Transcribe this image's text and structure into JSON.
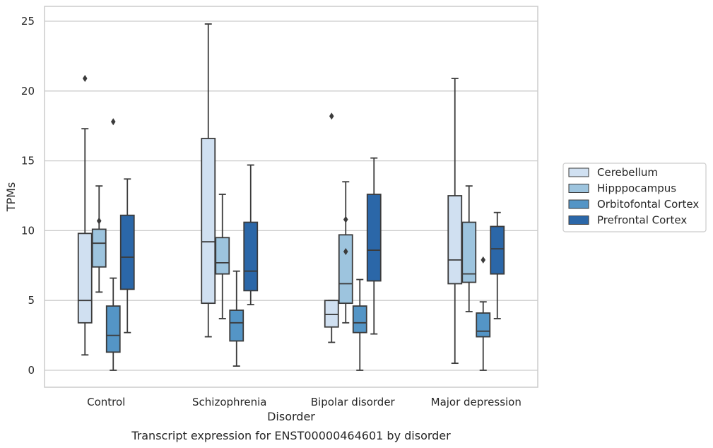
{
  "caption": "Transcript expression for ENST00000464601 by disorder",
  "chart_data": {
    "type": "boxplot",
    "title": "",
    "xlabel": "Disorder",
    "ylabel": "TPMs",
    "ylim": [
      -1.2,
      26
    ],
    "yticks": [
      0,
      5,
      10,
      15,
      20,
      25
    ],
    "grid": "horizontal",
    "legend_placement": "right",
    "categories": [
      "Control",
      "Schizophrenia",
      "Bipolar disorder",
      "Major depression"
    ],
    "series": [
      {
        "name": "Cerebellum",
        "color": "#d0e0f1",
        "boxes": [
          {
            "low": 1.1,
            "q1": 3.4,
            "median": 5.0,
            "q3": 9.8,
            "high": 17.3,
            "outliers": [
              20.9
            ]
          },
          {
            "low": 2.4,
            "q1": 4.8,
            "median": 9.2,
            "q3": 16.6,
            "high": 24.8,
            "outliers": []
          },
          {
            "low": 2.0,
            "q1": 3.1,
            "median": 4.0,
            "q3": 5.0,
            "high": 5.0,
            "outliers": [
              18.2
            ]
          },
          {
            "low": 0.5,
            "q1": 6.2,
            "median": 7.9,
            "q3": 12.5,
            "high": 20.9,
            "outliers": []
          }
        ]
      },
      {
        "name": "Hipppocampus",
        "color": "#9dc4de",
        "boxes": [
          {
            "low": 5.6,
            "q1": 7.4,
            "median": 9.1,
            "q3": 10.1,
            "high": 13.2,
            "outliers": [
              10.7
            ]
          },
          {
            "low": 3.7,
            "q1": 6.9,
            "median": 7.7,
            "q3": 9.5,
            "high": 12.6,
            "outliers": []
          },
          {
            "low": 3.4,
            "q1": 4.8,
            "median": 6.2,
            "q3": 9.7,
            "high": 13.5,
            "outliers": [
              10.8,
              8.5
            ]
          },
          {
            "low": 4.2,
            "q1": 6.3,
            "median": 6.9,
            "q3": 10.6,
            "high": 13.2,
            "outliers": []
          }
        ]
      },
      {
        "name": "Orbitofontal Cortex",
        "color": "#5495c6",
        "boxes": [
          {
            "low": 0.0,
            "q1": 1.3,
            "median": 2.5,
            "q3": 4.6,
            "high": 6.6,
            "outliers": [
              17.8
            ]
          },
          {
            "low": 0.3,
            "q1": 2.1,
            "median": 3.4,
            "q3": 4.3,
            "high": 7.1,
            "outliers": []
          },
          {
            "low": 0.0,
            "q1": 2.7,
            "median": 3.4,
            "q3": 4.6,
            "high": 6.5,
            "outliers": []
          },
          {
            "low": 0.0,
            "q1": 2.4,
            "median": 2.8,
            "q3": 4.1,
            "high": 4.9,
            "outliers": [
              7.9
            ]
          }
        ]
      },
      {
        "name": "Prefrontal Cortex",
        "color": "#2b67a8",
        "boxes": [
          {
            "low": 2.7,
            "q1": 5.8,
            "median": 8.1,
            "q3": 11.1,
            "high": 13.7,
            "outliers": []
          },
          {
            "low": 4.7,
            "q1": 5.7,
            "median": 7.1,
            "q3": 10.6,
            "high": 14.7,
            "outliers": []
          },
          {
            "low": 2.6,
            "q1": 6.4,
            "median": 8.6,
            "q3": 12.6,
            "high": 15.2,
            "outliers": []
          },
          {
            "low": 3.7,
            "q1": 6.9,
            "median": 8.7,
            "q3": 10.3,
            "high": 11.3,
            "outliers": []
          }
        ]
      }
    ]
  }
}
